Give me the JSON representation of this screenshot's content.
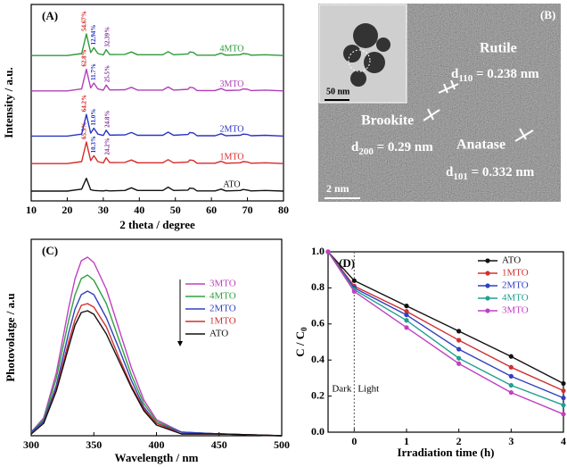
{
  "chart_data": [
    {
      "type": "line",
      "label": "(A)",
      "xlabel": "2 theta / degree",
      "ylabel": "Intensity / a.u.",
      "xlim": [
        10,
        80
      ],
      "xticks": [
        10,
        20,
        30,
        40,
        50,
        60,
        70,
        80
      ],
      "ylim": [
        0,
        100
      ],
      "legend": "inline",
      "x": [
        10,
        20,
        24,
        25.3,
        26.5,
        27.4,
        28.5,
        30,
        30.8,
        31.8,
        36,
        37.8,
        39.5,
        46.5,
        48,
        49.5,
        53.5,
        54,
        55,
        56,
        61,
        62.7,
        64,
        68,
        68.8,
        70,
        71,
        75,
        80
      ],
      "peak_label_colors": [
        "#d02020",
        "#2030c0",
        "#8030a0"
      ],
      "series": [
        {
          "name": "ATO",
          "color": "#111111",
          "values": [
            5,
            5,
            6,
            11.5,
            5.7,
            5.3,
            5.2,
            5.1,
            5.3,
            5.1,
            5.3,
            6.7,
            5.3,
            5.3,
            7,
            5.3,
            5.5,
            6.5,
            6.3,
            5.1,
            5.1,
            6,
            5.1,
            5.3,
            5.8,
            5.5,
            5.1,
            5.3,
            5
          ]
        },
        {
          "name": "1MTO",
          "color": "#d62a2a",
          "peak_labels": [
            "65.5%",
            "10.3%",
            "24.2%"
          ],
          "values": [
            19,
            19,
            20,
            30,
            20.5,
            23,
            20,
            19.3,
            22,
            19.5,
            19.6,
            20.8,
            19.4,
            19.4,
            21,
            19.4,
            19.8,
            20.8,
            20.6,
            19.2,
            19.2,
            20.2,
            19.2,
            19.4,
            20,
            19.8,
            19.2,
            19.4,
            19
          ]
        },
        {
          "name": "2MTO",
          "color": "#2a35c0",
          "peak_labels": [
            "64.2%",
            "11.0%",
            "24.8%"
          ],
          "values": [
            33,
            33,
            34,
            44,
            34.5,
            37,
            34,
            33.3,
            36,
            33.5,
            33.6,
            34.8,
            33.4,
            33.4,
            35,
            33.4,
            33.8,
            34.8,
            34.6,
            33.2,
            33.2,
            34.2,
            33.2,
            33.4,
            34,
            33.8,
            33.2,
            33.4,
            33
          ]
        },
        {
          "name": "3MTO",
          "color": "#b040b8",
          "peak_labels": [
            "62.8%",
            "11.7%",
            "25.5%"
          ],
          "values": [
            56,
            56,
            57,
            67,
            57.5,
            60,
            57,
            56.3,
            59,
            56.5,
            56.6,
            57.8,
            56.4,
            56.4,
            58,
            56.4,
            56.8,
            57.8,
            57.6,
            56.2,
            56.2,
            57.2,
            56.2,
            56.4,
            57,
            56.8,
            56.2,
            56.4,
            56
          ]
        },
        {
          "name": "4MTO",
          "color": "#2e9a3a",
          "peak_labels": [
            "54.67%",
            "12.94%",
            "32.39%"
          ],
          "values": [
            74,
            74,
            75,
            85,
            75.5,
            78,
            75,
            74.3,
            77,
            74.5,
            74.6,
            75.8,
            74.4,
            74.4,
            76,
            74.4,
            74.8,
            75.8,
            75.6,
            74.2,
            74.2,
            75.2,
            74.2,
            74.4,
            75,
            74.8,
            74.2,
            74.4,
            74
          ]
        }
      ]
    },
    {
      "type": "image",
      "label": "(B)",
      "labels": {
        "rutile": "Rutile",
        "brookite": "Brookite",
        "anatase": "Anatase",
        "inset_scale": "50 nm",
        "scale": "2 nm",
        "d110": {
          "main": "d",
          "sub": "110",
          "tail": " = 0.238 nm"
        },
        "d200": {
          "main": "d",
          "sub": "200",
          "tail": " = 0.29 nm"
        },
        "d101": {
          "main": "d",
          "sub": "101",
          "tail": " = 0.332 nm"
        }
      }
    },
    {
      "type": "line",
      "label": "(C)",
      "xlabel": "Wavelength / nm",
      "ylabel": "Photovolatge / a.u",
      "xlim": [
        300,
        500
      ],
      "xticks": [
        300,
        350,
        400,
        450,
        500
      ],
      "ylim": [
        0,
        110
      ],
      "legend": "upper right",
      "x": [
        300,
        310,
        320,
        330,
        335,
        340,
        345,
        350,
        360,
        370,
        380,
        390,
        400,
        420,
        450,
        500
      ],
      "series": [
        {
          "name": "3MTO",
          "color": "#c040c0",
          "values": [
            2,
            10,
            35,
            72,
            88,
            98,
            100,
            97,
            82,
            60,
            38,
            20,
            9,
            2,
            1,
            0
          ]
        },
        {
          "name": "4MTO",
          "color": "#30a040",
          "values": [
            2,
            9,
            32,
            65,
            79,
            88,
            90,
            87,
            74,
            54,
            34,
            18,
            8,
            2,
            1,
            0
          ]
        },
        {
          "name": "2MTO",
          "color": "#3040c0",
          "values": [
            2,
            8,
            28,
            58,
            71,
            79,
            81,
            79,
            66,
            49,
            31,
            16,
            7,
            2,
            1,
            0
          ]
        },
        {
          "name": "1MTO",
          "color": "#d03030",
          "values": [
            1,
            7,
            26,
            53,
            65,
            73,
            74,
            72,
            61,
            44,
            28,
            15,
            7,
            1,
            1,
            0
          ]
        },
        {
          "name": "ATO",
          "color": "#111111",
          "values": [
            1,
            7,
            25,
            50,
            62,
            69,
            70,
            68,
            57,
            42,
            27,
            14,
            6,
            1,
            1,
            0
          ]
        }
      ]
    },
    {
      "type": "line",
      "label": "(D)",
      "xlabel": "Irradiation time (h)",
      "ylabel": "C / C",
      "ylabel_sub": "0",
      "xlim": [
        -0.5,
        4
      ],
      "xticks": [
        0,
        1,
        2,
        3,
        4
      ],
      "ylim": [
        0,
        1
      ],
      "yticks": [
        {
          "value": 0,
          "label": "0.0"
        },
        0.2,
        0.4,
        0.6,
        0.8,
        {
          "value": 1,
          "label": "1.0"
        }
      ],
      "markers": true,
      "legend": "upper right",
      "vline": 0,
      "dark_label": "Dark",
      "light_label": "Light",
      "x": [
        -0.5,
        0,
        1,
        2,
        3,
        4
      ],
      "series": [
        {
          "name": "ATO",
          "color": "#111111",
          "values": [
            1.0,
            0.84,
            0.7,
            0.56,
            0.42,
            0.27
          ]
        },
        {
          "name": "1MTO",
          "color": "#d03030",
          "values": [
            1.0,
            0.81,
            0.67,
            0.51,
            0.36,
            0.23
          ]
        },
        {
          "name": "2MTO",
          "color": "#3040c0",
          "values": [
            1.0,
            0.8,
            0.65,
            0.46,
            0.31,
            0.19
          ]
        },
        {
          "name": "4MTO",
          "color": "#20a090",
          "values": [
            1.0,
            0.79,
            0.62,
            0.41,
            0.26,
            0.15
          ]
        },
        {
          "name": "3MTO",
          "color": "#c040c0",
          "values": [
            1.0,
            0.78,
            0.58,
            0.38,
            0.22,
            0.1
          ]
        }
      ]
    }
  ]
}
